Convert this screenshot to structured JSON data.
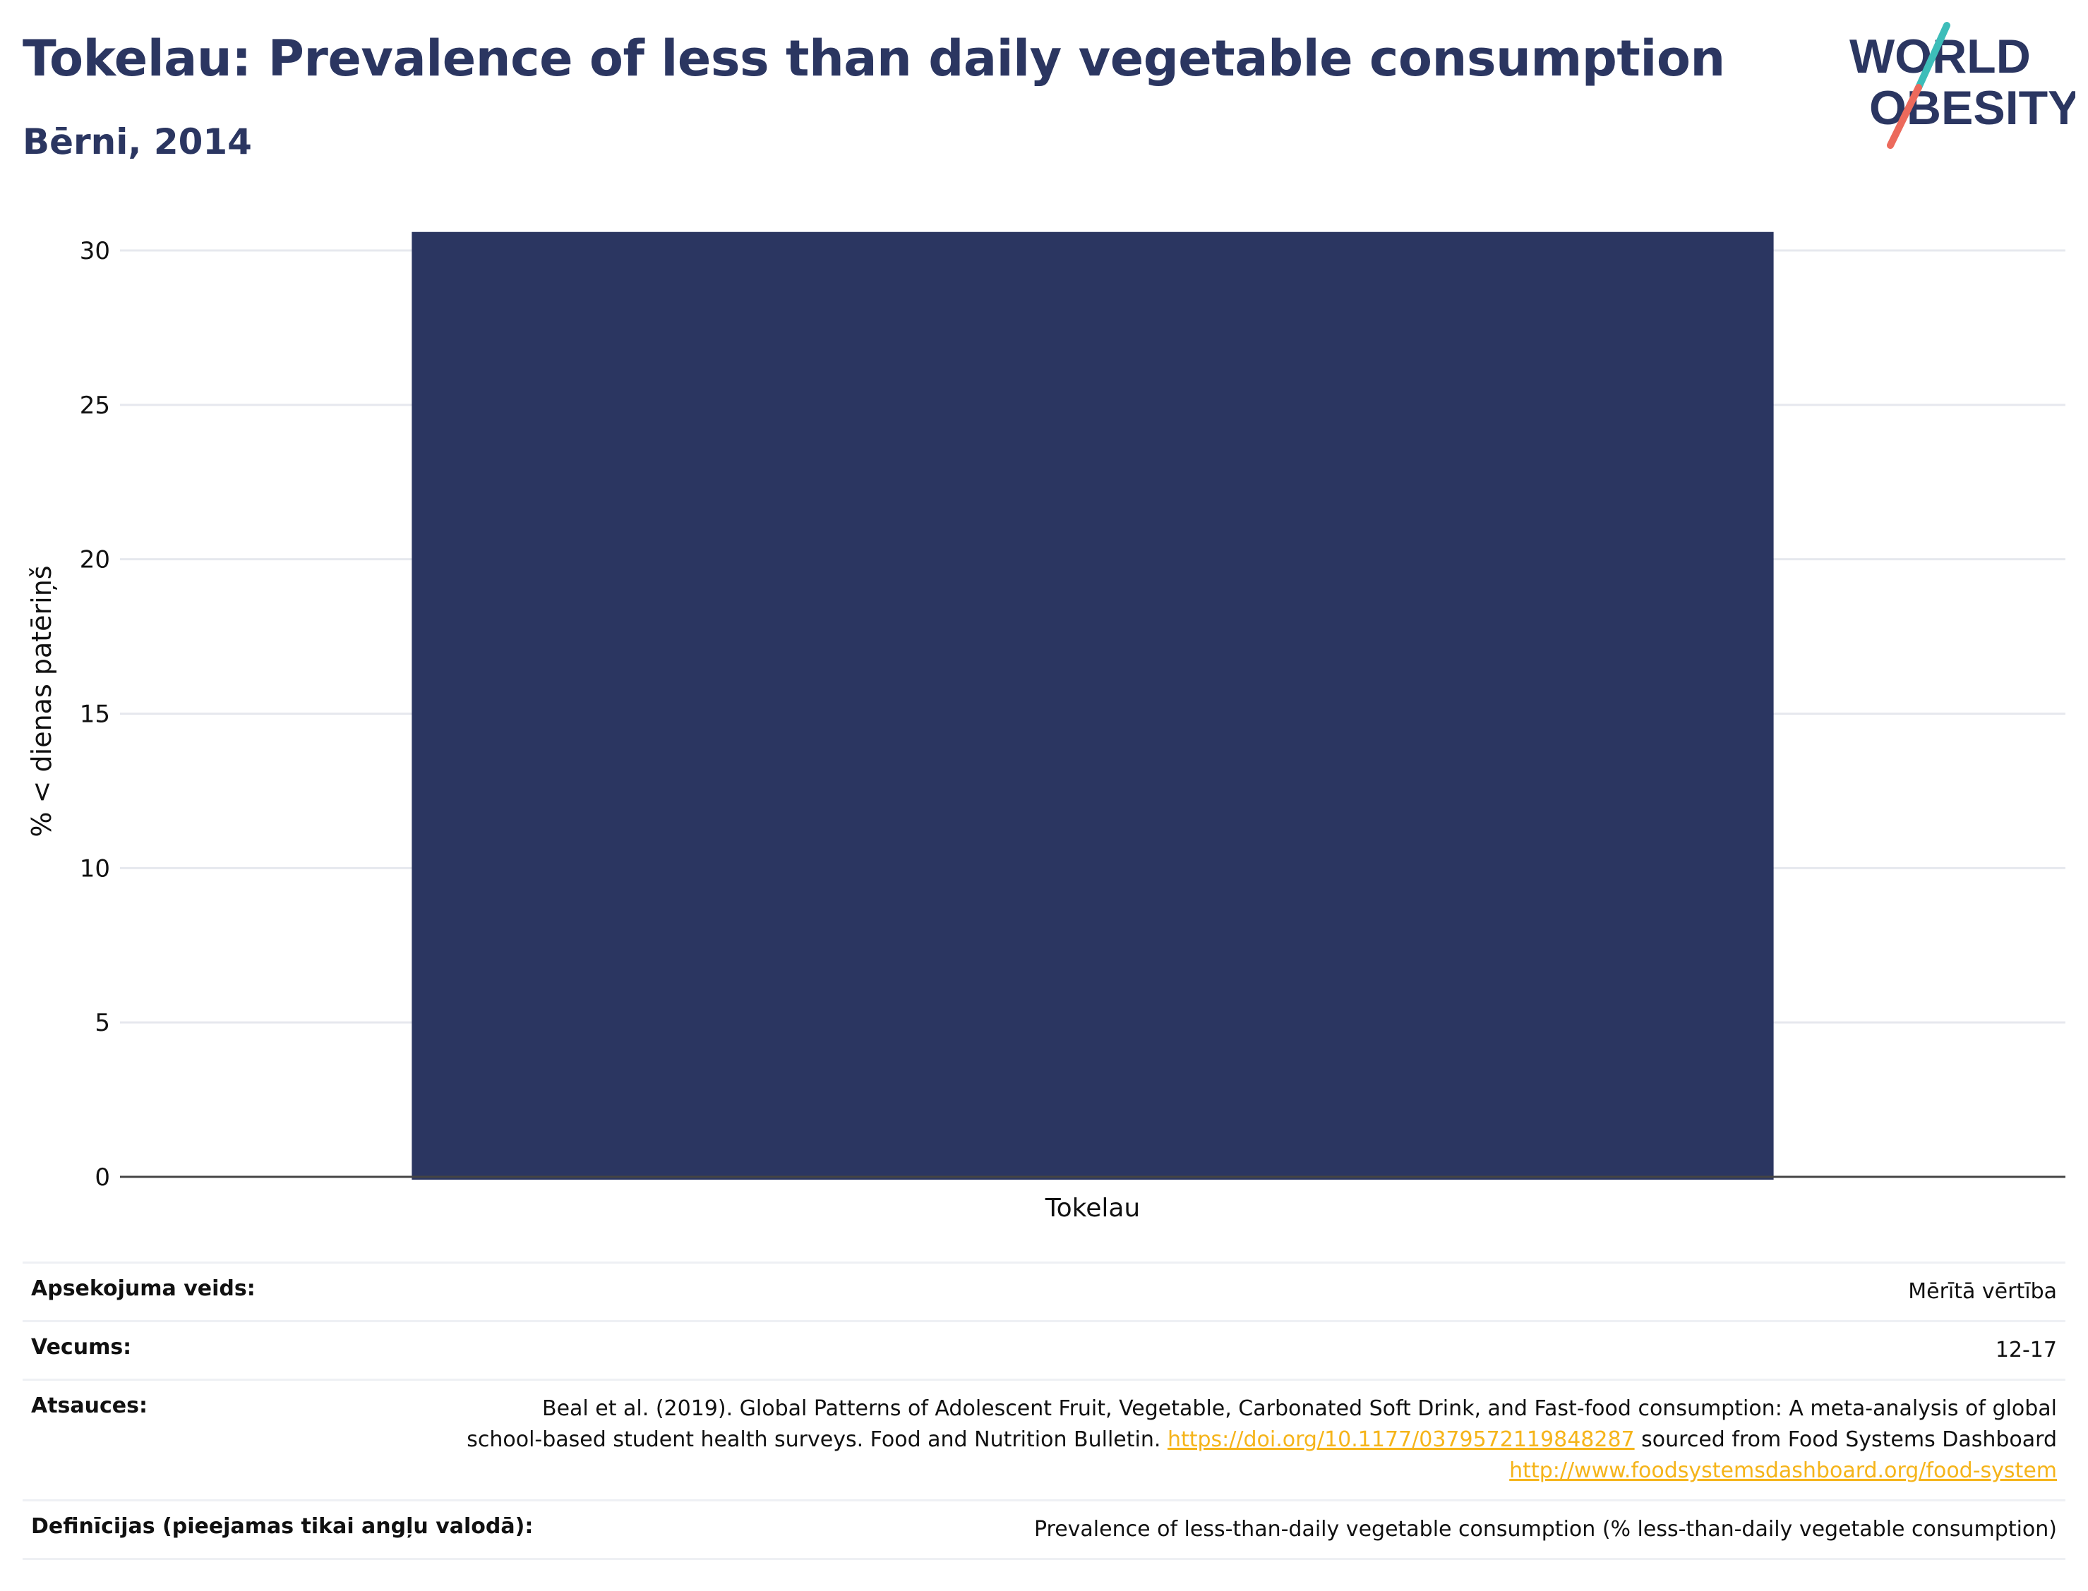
{
  "header": {
    "title": "Tokelau: Prevalence of less than daily vegetable consumption",
    "subtitle": "Bērni, 2014"
  },
  "logo": {
    "line1": "WORLD",
    "line2": "OBESITY",
    "colors": {
      "text": "#2b3661",
      "slash_top": "#3dbdb9",
      "slash_bottom": "#ec6a5c"
    }
  },
  "chart_data": {
    "type": "bar",
    "categories": [
      "Tokelau"
    ],
    "values": [
      30.6
    ],
    "ylabel": "% < dienas patēriņš",
    "xlabel": "",
    "ylim": [
      0,
      30.8
    ],
    "yticks": [
      0,
      5,
      10,
      15,
      20,
      25,
      30
    ],
    "grid": true,
    "bar_color": "#2b3661"
  },
  "meta": {
    "survey_type": {
      "label": "Apsekojuma veids:",
      "value": "Mērītā vērtība"
    },
    "age": {
      "label": "Vecums:",
      "value": "12-17"
    },
    "references": {
      "label": "Atsauces:",
      "text1": "Beal et al. (2019). Global Patterns of Adolescent Fruit, Vegetable, Carbonated Soft Drink, and Fast-food consumption: A meta-analysis of global school-based student health surveys. Food and Nutrition Bulletin.",
      "link1": "https://doi.org/10.1177/0379572119848287",
      "text2": "sourced from Food Systems Dashboard",
      "link2": "http://www.foodsystemsdashboard.org/food-system"
    },
    "definitions": {
      "label": "Definīcijas (pieejamas tikai angļu valodā):",
      "value": "Prevalence of less-than-daily vegetable consumption (% less-than-daily vegetable consumption)"
    }
  }
}
